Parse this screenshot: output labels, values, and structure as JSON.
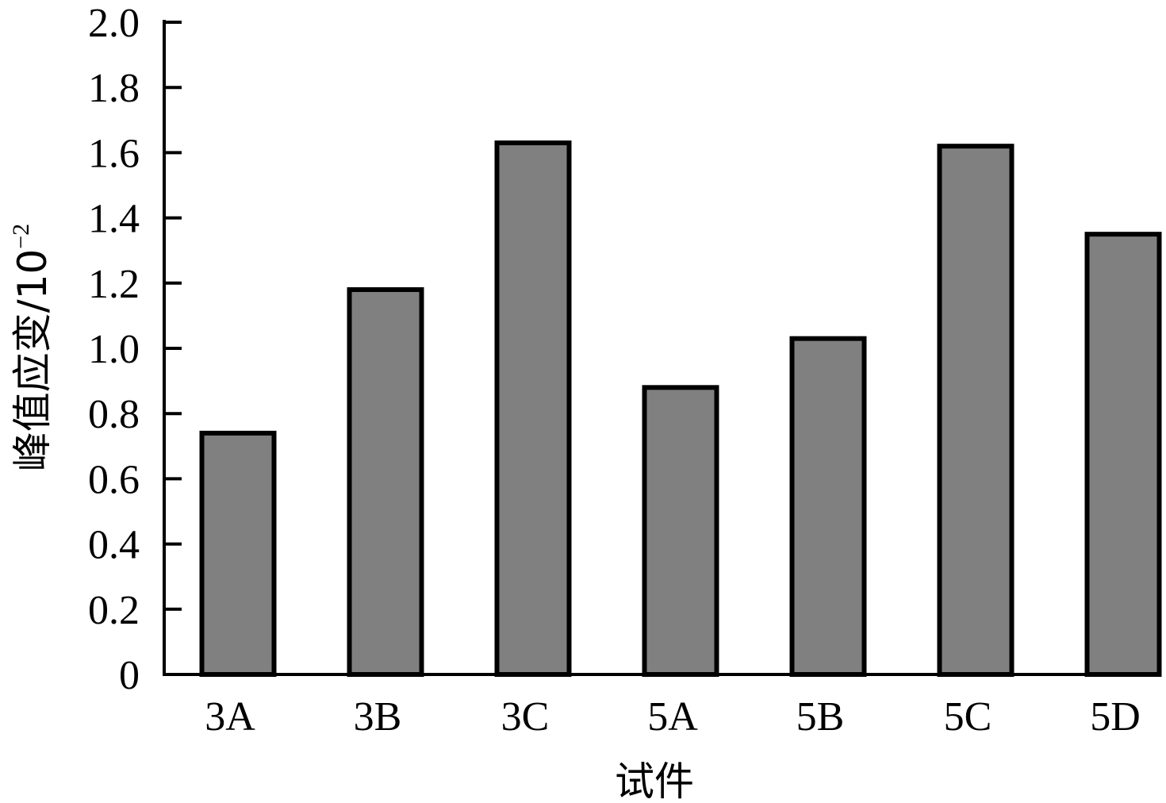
{
  "chart_data": {
    "type": "bar",
    "categories": [
      "3A",
      "3B",
      "3C",
      "5A",
      "5B",
      "5C",
      "5D"
    ],
    "values": [
      0.74,
      1.18,
      1.63,
      0.88,
      1.03,
      1.62,
      1.35
    ],
    "xlabel": "试件",
    "ylabel": {
      "text": "峰值应变/10",
      "superscript": "−2"
    },
    "ylim": [
      0,
      2.0
    ],
    "yticks": [
      "0",
      "0.2",
      "0.4",
      "0.6",
      "0.8",
      "1.0",
      "1.2",
      "1.4",
      "1.6",
      "1.8",
      "2.0"
    ],
    "grid": false,
    "colors": {
      "bar_fill": "#808080",
      "bar_stroke": "#000000",
      "axis": "#000000"
    }
  }
}
